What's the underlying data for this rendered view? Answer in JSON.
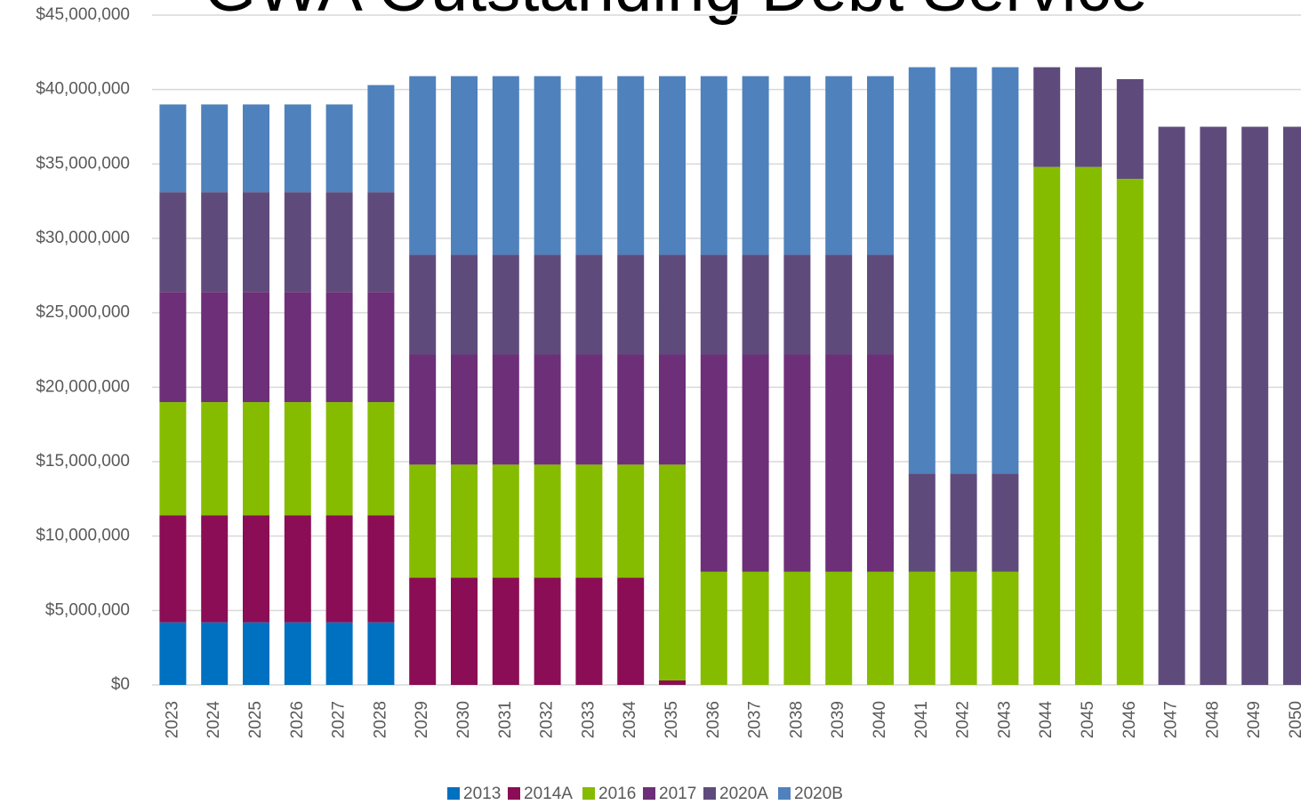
{
  "chart_data": {
    "type": "stacked_bar",
    "title": "GWA Outstanding Debt Service",
    "categories": [
      "2023",
      "2024",
      "2025",
      "2026",
      "2027",
      "2028",
      "2029",
      "2030",
      "2031",
      "2032",
      "2033",
      "2034",
      "2035",
      "2036",
      "2037",
      "2038",
      "2039",
      "2040",
      "2041",
      "2042",
      "2043",
      "2044",
      "2045",
      "2046",
      "2047",
      "2048",
      "2049",
      "2050"
    ],
    "series": [
      {
        "name": "2013",
        "color": "#0070c0",
        "values": [
          4.2,
          4.2,
          4.2,
          4.2,
          4.2,
          4.2,
          0,
          0,
          0,
          0,
          0,
          0,
          0,
          0,
          0,
          0,
          0,
          0,
          0,
          0,
          0,
          0,
          0,
          0,
          0,
          0,
          0,
          0
        ]
      },
      {
        "name": "2014A",
        "color": "#8b0d55",
        "values": [
          7.2,
          7.2,
          7.2,
          7.2,
          7.2,
          7.2,
          7.2,
          7.2,
          7.2,
          7.2,
          7.2,
          7.2,
          0.3,
          0,
          0,
          0,
          0,
          0,
          0,
          0,
          0,
          0,
          0,
          0,
          0,
          0,
          0,
          0
        ]
      },
      {
        "name": "2016",
        "color": "#86bc00",
        "values": [
          7.6,
          7.6,
          7.6,
          7.6,
          7.6,
          7.6,
          7.6,
          7.6,
          7.6,
          7.6,
          7.6,
          7.6,
          14.5,
          7.6,
          7.6,
          7.6,
          7.6,
          7.6,
          7.6,
          7.6,
          7.6,
          34.8,
          34.8,
          34.0,
          0,
          0,
          0,
          0
        ]
      },
      {
        "name": "2017",
        "color": "#6d2f78",
        "values": [
          7.4,
          7.4,
          7.4,
          7.4,
          7.4,
          7.4,
          7.4,
          7.4,
          7.4,
          7.4,
          7.4,
          7.4,
          7.4,
          14.6,
          14.6,
          14.6,
          14.6,
          14.6,
          0,
          0,
          0,
          0,
          0,
          0,
          0,
          0,
          0,
          0
        ]
      },
      {
        "name": "2020A",
        "color": "#5f4b7b",
        "values": [
          6.7,
          6.7,
          6.7,
          6.7,
          6.7,
          6.7,
          6.7,
          6.7,
          6.7,
          6.7,
          6.7,
          6.7,
          6.7,
          6.7,
          6.7,
          6.7,
          6.7,
          6.7,
          6.6,
          6.6,
          6.6,
          6.7,
          6.7,
          6.7,
          37.5,
          37.5,
          37.5,
          37.5
        ]
      },
      {
        "name": "2020B",
        "color": "#4f81bd",
        "values": [
          5.9,
          5.9,
          5.9,
          5.9,
          5.9,
          7.2,
          12.0,
          12.0,
          12.0,
          12.0,
          12.0,
          12.0,
          12.0,
          12.0,
          12.0,
          12.0,
          12.0,
          12.0,
          27.3,
          27.3,
          27.3,
          0,
          0,
          0,
          0,
          0,
          0,
          0
        ]
      }
    ],
    "ylim": [
      0,
      45
    ],
    "yticks": [
      {
        "value": 0,
        "label": "$0"
      },
      {
        "value": 5,
        "label": "$5,000,000"
      },
      {
        "value": 10,
        "label": "$10,000,000"
      },
      {
        "value": 15,
        "label": "$15,000,000"
      },
      {
        "value": 20,
        "label": "$20,000,000"
      },
      {
        "value": 25,
        "label": "$25,000,000"
      },
      {
        "value": 30,
        "label": "$30,000,000"
      },
      {
        "value": 35,
        "label": "$35,000,000"
      },
      {
        "value": 40,
        "label": "$40,000,000"
      },
      {
        "value": 45,
        "label": "$45,000,000"
      }
    ],
    "grid": true,
    "legend": "bottom"
  }
}
